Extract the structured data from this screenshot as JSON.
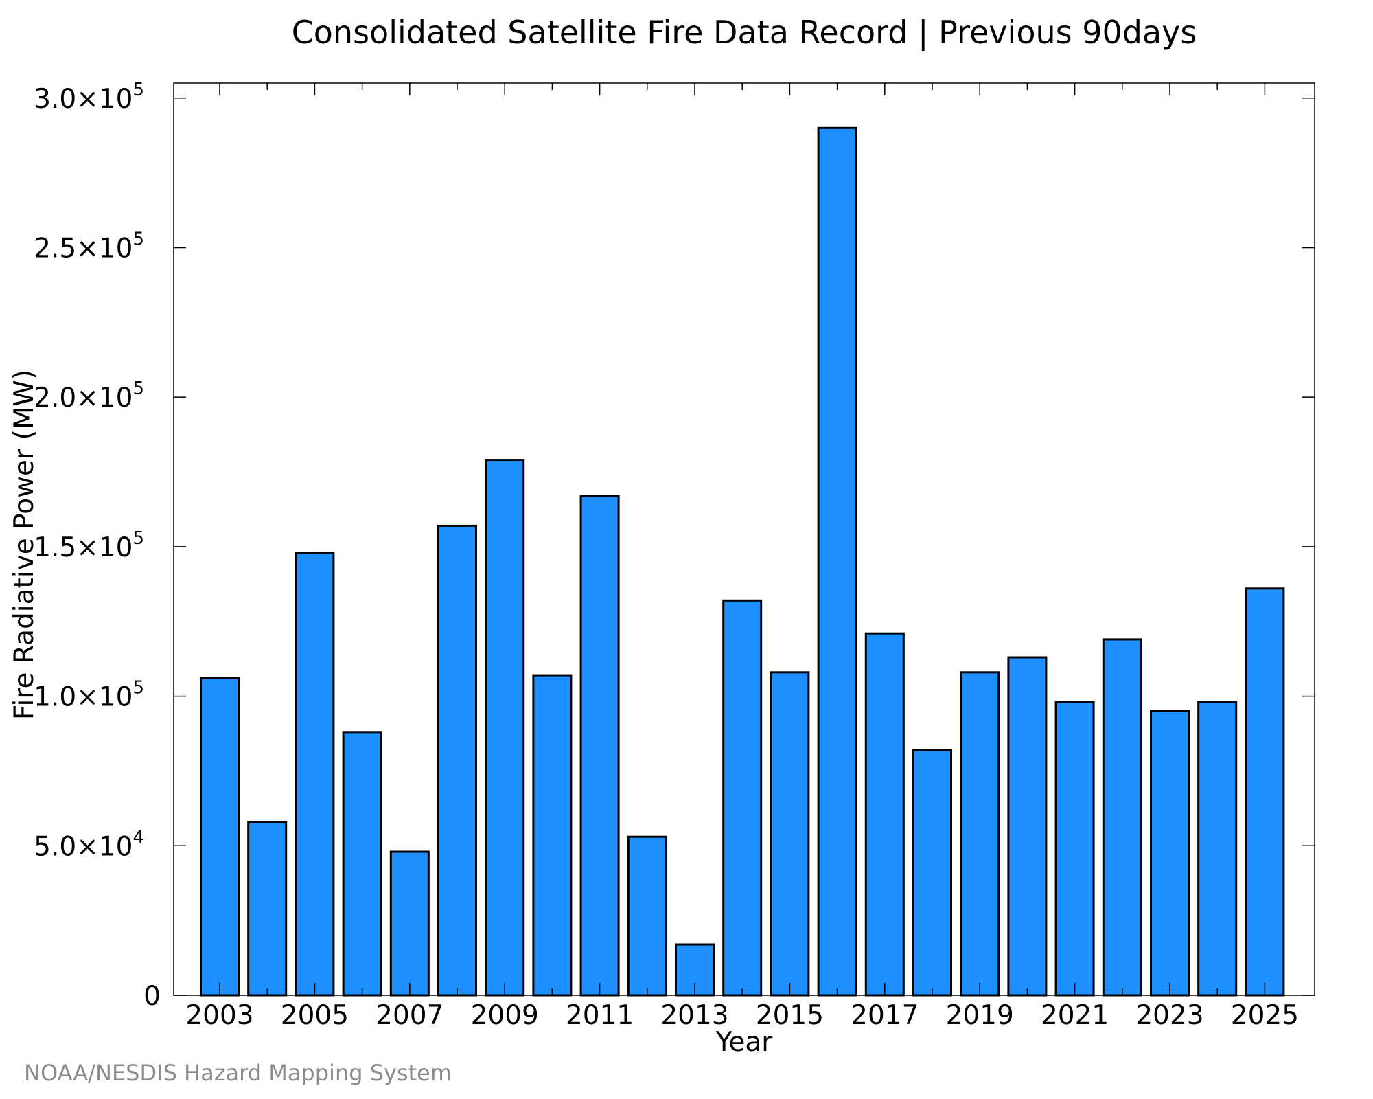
{
  "chart_data": {
    "type": "bar",
    "title": "Consolidated Satellite Fire Data Record | Previous 90days",
    "xlabel": "Year",
    "ylabel": "Fire Radiative Power (MW)",
    "categories": [
      "2003",
      "2004",
      "2005",
      "2006",
      "2007",
      "2008",
      "2009",
      "2010",
      "2011",
      "2012",
      "2013",
      "2014",
      "2015",
      "2016",
      "2017",
      "2018",
      "2019",
      "2020",
      "2021",
      "2022",
      "2023",
      "2024",
      "2025"
    ],
    "values": [
      106000,
      58000,
      148000,
      88000,
      48000,
      157000,
      179000,
      107000,
      167000,
      53000,
      17000,
      132000,
      108000,
      290000,
      121000,
      82000,
      108000,
      113000,
      98000,
      119000,
      95000,
      98000,
      136000
    ],
    "ylim": [
      0,
      305000
    ],
    "y_ticks": [
      {
        "value": 0,
        "mantissa": "0",
        "exponent": ""
      },
      {
        "value": 50000,
        "mantissa": "5.0×10",
        "exponent": "4"
      },
      {
        "value": 100000,
        "mantissa": "1.0×10",
        "exponent": "5"
      },
      {
        "value": 150000,
        "mantissa": "1.5×10",
        "exponent": "5"
      },
      {
        "value": 200000,
        "mantissa": "2.0×10",
        "exponent": "5"
      },
      {
        "value": 250000,
        "mantissa": "2.5×10",
        "exponent": "5"
      },
      {
        "value": 300000,
        "mantissa": "3.0×10",
        "exponent": "5"
      }
    ],
    "x_tick_labels": [
      "2003",
      "2005",
      "2007",
      "2009",
      "2011",
      "2013",
      "2015",
      "2017",
      "2019",
      "2021",
      "2023",
      "2025"
    ],
    "bar_color": "#1e90ff",
    "bar_edge_color": "#000000",
    "grid": false,
    "legend": "none"
  },
  "credit": "NOAA/NESDIS Hazard Mapping System"
}
